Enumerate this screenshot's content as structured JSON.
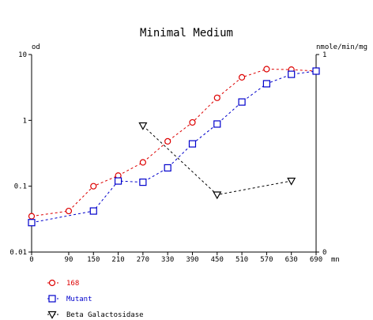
{
  "chart_data": {
    "type": "line",
    "title": "Minimal Medium",
    "left_axis_label": "od",
    "right_axis_label": "nmole/min/mg",
    "x_unit": "mn",
    "x_ticks": [
      "0",
      "90",
      "150",
      "210",
      "270",
      "330",
      "390",
      "450",
      "510",
      "570",
      "630",
      "690"
    ],
    "y_left_scale": "log",
    "y_left_ticks": [
      "0.01",
      "0.1",
      "1",
      "10"
    ],
    "y_left_range": [
      0.01,
      10
    ],
    "y_right_ticks": [
      "0",
      "1"
    ],
    "y_right_range": [
      0,
      1
    ],
    "grid": false,
    "legend_position": "bottom-left",
    "series": [
      {
        "name": "168",
        "color": "#dd0000",
        "marker": "circle",
        "axis": "left",
        "points": [
          [
            0,
            0.035
          ],
          [
            90,
            0.042
          ],
          [
            150,
            0.1
          ],
          [
            210,
            0.145
          ],
          [
            270,
            0.23
          ],
          [
            330,
            0.48
          ],
          [
            390,
            0.93
          ],
          [
            450,
            2.2
          ],
          [
            510,
            4.5
          ],
          [
            570,
            6.0
          ],
          [
            630,
            5.9
          ],
          [
            690,
            5.6
          ]
        ]
      },
      {
        "name": "Mutant",
        "color": "#0000cc",
        "marker": "square",
        "axis": "left",
        "points": [
          [
            0,
            0.028
          ],
          [
            150,
            0.042
          ],
          [
            210,
            0.12
          ],
          [
            270,
            0.115
          ],
          [
            330,
            0.19
          ],
          [
            390,
            0.44
          ],
          [
            450,
            0.88
          ],
          [
            510,
            1.9
          ],
          [
            570,
            3.6
          ],
          [
            630,
            5.0
          ],
          [
            690,
            5.6
          ]
        ]
      },
      {
        "name": "Beta Galactosidase",
        "color": "#000000",
        "marker": "triangle-down",
        "axis": "right",
        "points": [
          [
            270,
            0.64
          ],
          [
            450,
            0.29
          ],
          [
            630,
            0.36
          ]
        ]
      }
    ]
  }
}
